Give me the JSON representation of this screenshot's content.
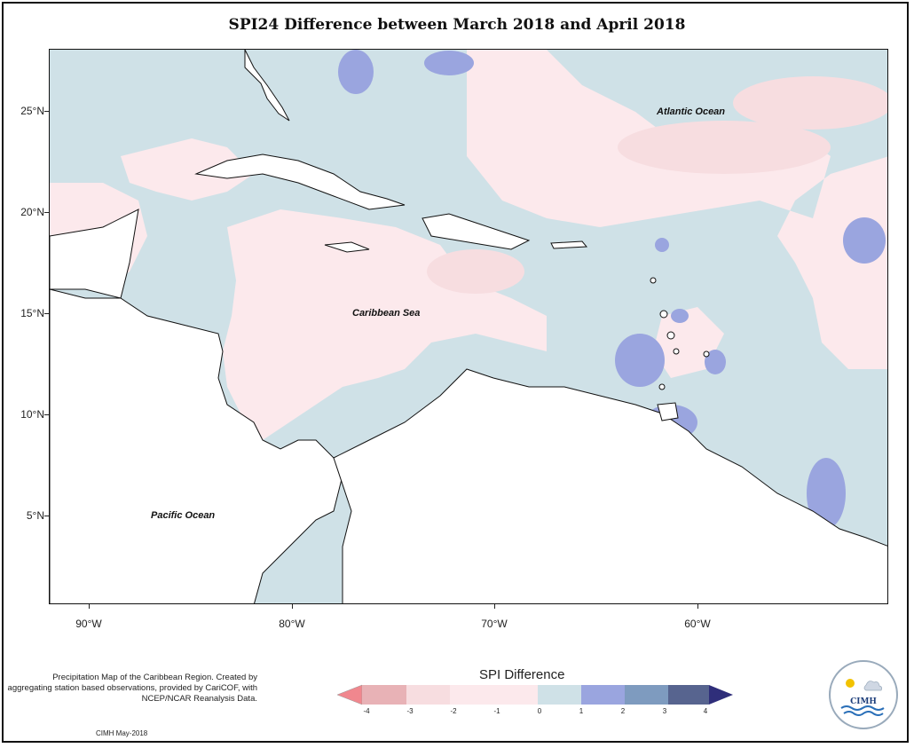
{
  "title": "SPI24 Difference between March 2018 and April 2018",
  "map": {
    "lon_range": [
      -92,
      -50
    ],
    "lat_range": [
      1,
      29
    ],
    "lat_ticks": [
      {
        "value": 25,
        "label": "25°N"
      },
      {
        "value": 20,
        "label": "20°N"
      },
      {
        "value": 15,
        "label": "15°N"
      },
      {
        "value": 10,
        "label": "10°N"
      },
      {
        "value": 5,
        "label": "5°N"
      }
    ],
    "lon_ticks": [
      {
        "value": -90,
        "label": "90°W"
      },
      {
        "value": -80,
        "label": "80°W"
      },
      {
        "value": -70,
        "label": "70°W"
      },
      {
        "value": -60,
        "label": "60°W"
      }
    ],
    "labels": {
      "atlantic": "Atlantic Ocean",
      "caribbean": "Caribbean Sea",
      "pacific": "Pacific Ocean"
    }
  },
  "legend": {
    "title": "SPI Difference",
    "ticks": [
      "-4",
      "-3",
      "-2",
      "-1",
      "0",
      "1",
      "2",
      "3",
      "4"
    ],
    "colors": [
      "#f0878e",
      "#e8b2b6",
      "#f7dde0",
      "#fce9ec",
      "#cfe1e7",
      "#9aa5df",
      "#7e9bbf",
      "#57648f",
      "#2f2e7a"
    ]
  },
  "description": "Precipitation Map of the Caribbean Region. Created by aggregating station based observations, provided by CariCOF, with NCEP/NCAR Reanalysis Data.",
  "credit": "CIMH May-2018",
  "logo": {
    "text": "CIMH"
  }
}
